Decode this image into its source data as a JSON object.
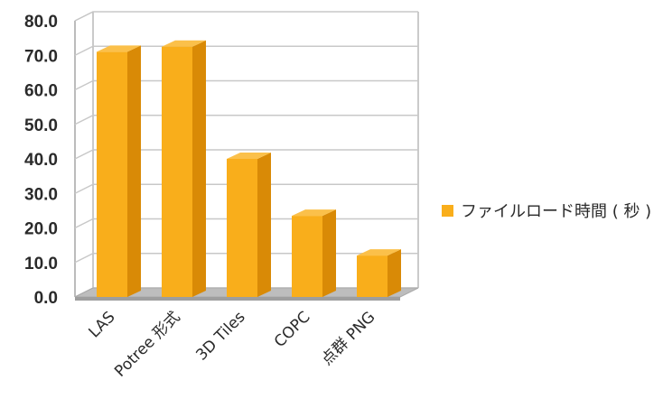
{
  "chart_data": {
    "type": "bar",
    "categories": [
      "LAS",
      "Potree 形式",
      "3D Tiles",
      "COPC",
      "点群 PNG"
    ],
    "series": [
      {
        "name": "ファイルロード時間 ( 秒 )",
        "values": [
          71.0,
          72.5,
          40.0,
          23.5,
          12.0
        ]
      }
    ],
    "ylim": [
      0,
      80
    ],
    "yticks": [
      "0.0",
      "10.0",
      "20.0",
      "30.0",
      "40.0",
      "50.0",
      "60.0",
      "70.0",
      "80.0"
    ],
    "grid": true,
    "style": "3d-bar",
    "legend": "right",
    "colors": {
      "bar_front": "#f9ae1b",
      "bar_side": "#d98a06",
      "bar_top": "#fbc04a",
      "floor": "#bdbdbd",
      "grid": "#c8c8c8",
      "wall": "#a6a6a6"
    }
  }
}
